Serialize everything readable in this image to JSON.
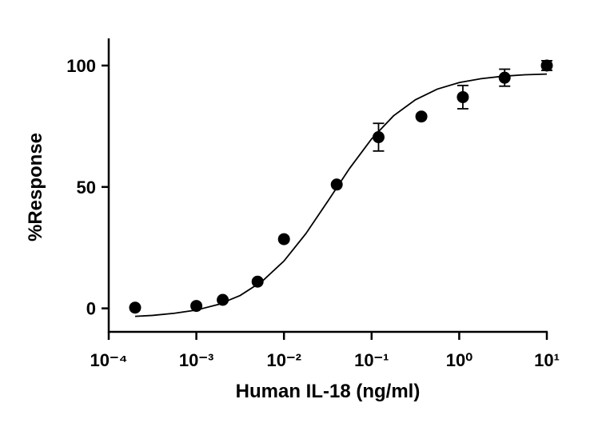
{
  "chart_data": {
    "type": "scatter",
    "log_x": true,
    "x_label": "Human IL-18 (ng/ml)",
    "y_label": "%Response",
    "xlim": [
      0.0001,
      10
    ],
    "ylim": [
      -10,
      110
    ],
    "xticks": [
      {
        "value": 0.0001,
        "label": "10⁻⁴"
      },
      {
        "value": 0.001,
        "label": "10⁻³"
      },
      {
        "value": 0.01,
        "label": "10⁻²"
      },
      {
        "value": 0.1,
        "label": "10⁻¹"
      },
      {
        "value": 1,
        "label": "10⁰"
      },
      {
        "value": 10,
        "label": "10¹"
      }
    ],
    "yticks": [
      0,
      50,
      100
    ],
    "series": [
      {
        "color": "#000000",
        "x": [
          0.0002,
          0.001,
          0.002,
          0.005,
          0.01,
          0.04,
          0.12,
          0.37,
          1.1,
          3.3,
          10
        ],
        "values": [
          0.3,
          1,
          3.5,
          11,
          28.5,
          51,
          70.5,
          79,
          87,
          95,
          100
        ],
        "errors": [
          null,
          null,
          null,
          null,
          null,
          null,
          5.7,
          null,
          4.8,
          3.5,
          2
        ]
      }
    ],
    "curve": {
      "color": "#000000",
      "x": [
        0.0002,
        0.000316,
        0.000562,
        0.001,
        0.00178,
        0.00316,
        0.00562,
        0.01,
        0.0178,
        0.0316,
        0.0562,
        0.1,
        0.178,
        0.316,
        0.562,
        1,
        1.78,
        3.16,
        5.62,
        10
      ],
      "values": [
        -3.3,
        -2.9,
        -2,
        -0.7,
        1.6,
        5.3,
        11.1,
        19.5,
        30.8,
        44.1,
        57.7,
        69.8,
        79.3,
        85.9,
        90.3,
        93,
        94.6,
        95.6,
        96.2,
        96.5
      ]
    }
  }
}
